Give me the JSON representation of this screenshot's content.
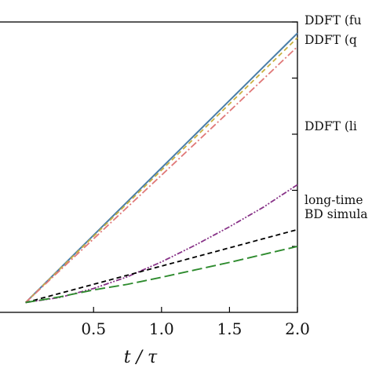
{
  "chart_data": {
    "type": "line",
    "xlabel": "t / τ",
    "xlim": [
      -0.2,
      2.0
    ],
    "ylim": [
      -0.035,
      1.0
    ],
    "xticks": [
      0.5,
      1.0,
      1.5,
      2.0
    ],
    "xtick_labels": [
      "0.5",
      "1.0",
      "1.5",
      "2.0"
    ],
    "yticks": [
      0.2,
      0.4,
      0.6,
      0.8,
      1.0
    ],
    "grid": false,
    "legend": "right, labels at line ends, clipped by image edge",
    "series": [
      {
        "name": "DDFT (fu",
        "color": "#4a7ea8",
        "style": "solid",
        "x": [
          0,
          0.5,
          1.0,
          1.5,
          2.0
        ],
        "y": [
          0.0,
          0.24,
          0.48,
          0.72,
          0.96
        ]
      },
      {
        "name": "",
        "color": "#c8b040",
        "style": "dashed",
        "x": [
          0,
          0.5,
          1.0,
          1.5,
          2.0
        ],
        "y": [
          0.0,
          0.236,
          0.472,
          0.708,
          0.944
        ]
      },
      {
        "name": "DDFT (q",
        "color": "#e07878",
        "style": "dashdot",
        "x": [
          0,
          0.5,
          1.0,
          1.5,
          2.0
        ],
        "y": [
          0.0,
          0.227,
          0.454,
          0.682,
          0.912
        ]
      },
      {
        "name": "DDFT (li",
        "color": "#883388",
        "style": "dashdotdot",
        "x": [
          0,
          0.25,
          0.5,
          0.75,
          1.0,
          1.25,
          1.5,
          1.75,
          2.0
        ],
        "y": [
          0.0,
          0.018,
          0.05,
          0.092,
          0.145,
          0.205,
          0.27,
          0.34,
          0.42
        ]
      },
      {
        "name": "long-time",
        "color": "#000000",
        "style": "dashed",
        "x": [
          0,
          0.5,
          1.0,
          1.5,
          2.0
        ],
        "y": [
          0.0,
          0.065,
          0.13,
          0.195,
          0.26
        ]
      },
      {
        "name": "BD simula",
        "color": "#2e8b2e",
        "style": "longdashed",
        "x": [
          0,
          0.25,
          0.5,
          0.75,
          1.0,
          1.5,
          2.0
        ],
        "y": [
          0.0,
          0.02,
          0.045,
          0.065,
          0.09,
          0.143,
          0.2
        ]
      }
    ]
  }
}
